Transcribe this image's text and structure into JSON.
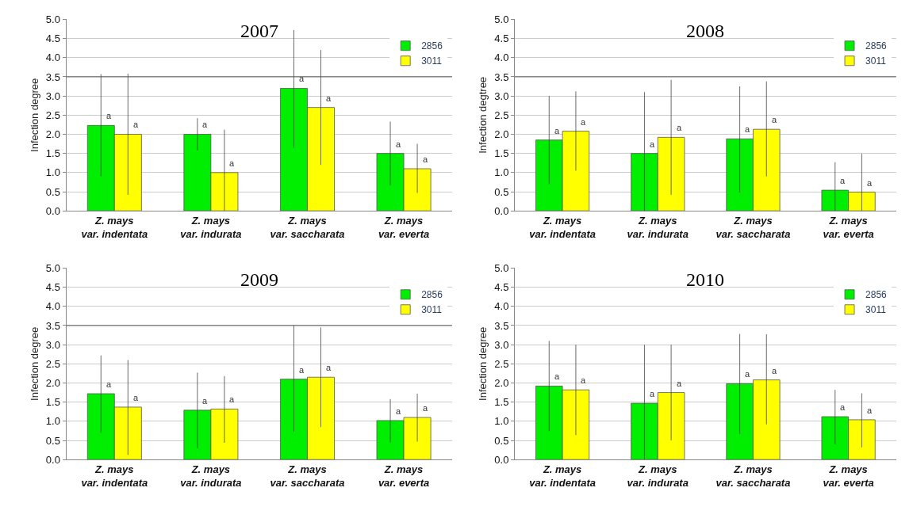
{
  "chart_data": [
    {
      "type": "bar",
      "title": "2007",
      "ylabel": "Infection degree",
      "categories": [
        "Z. mays\nvar. indentata",
        "Z. mays\nvar. indurata",
        "Z. mays\nvar. saccharata",
        "Z. mays\nvar. everta"
      ],
      "ylim": [
        0,
        5
      ],
      "yticks": [
        {
          "value": 0,
          "label": "0.0"
        },
        {
          "value": 0.5,
          "label": "0.5"
        },
        {
          "value": 1,
          "label": "1.0"
        },
        {
          "value": 1.5,
          "label": "1.5"
        },
        {
          "value": 2,
          "label": "2.0"
        },
        {
          "value": 2.5,
          "label": "2.5"
        },
        {
          "value": 3,
          "label": "3.0"
        },
        {
          "value": 3.5,
          "label": "3.5"
        },
        {
          "value": 4,
          "label": "4.0"
        },
        {
          "value": 4.5,
          "label": "4.5"
        },
        {
          "value": 5,
          "label": "5.0"
        }
      ],
      "grid": "y",
      "legend": "top right",
      "ref_lines": [
        {
          "axis": "y",
          "value": 3.5,
          "color": "#555555"
        }
      ],
      "series": [
        {
          "name": "2856",
          "color": "#00ee00",
          "values": [
            2.23,
            2.0,
            3.2,
            1.5
          ],
          "errors": [
            [
              0.9,
              3.57
            ],
            [
              1.58,
              2.42
            ],
            [
              1.65,
              4.72
            ],
            [
              0.67,
              2.33
            ]
          ],
          "value_labels": [
            "a",
            "a",
            "a",
            "a"
          ]
        },
        {
          "name": "3011",
          "color": "#ffff00",
          "values": [
            2.0,
            1.0,
            2.7,
            1.1
          ],
          "errors": [
            [
              0.42,
              3.58
            ],
            [
              0,
              2.12
            ],
            [
              1.2,
              4.2
            ],
            [
              0.47,
              1.75
            ]
          ],
          "value_labels": [
            "a",
            "a",
            "a",
            "a"
          ]
        }
      ]
    },
    {
      "type": "bar",
      "title": "2008",
      "ylabel": "Infection degtree",
      "categories": [
        "Z. mays\nvar. indentata",
        "Z. mays\nvar. indurata",
        "Z. mays\nvar. saccharata",
        "Z. mays\nvar. everta"
      ],
      "ylim": [
        0,
        5
      ],
      "yticks": [
        {
          "value": 0,
          "label": "0.0"
        },
        {
          "value": 0.5,
          "label": "0.5"
        },
        {
          "value": 1,
          "label": "1.0"
        },
        {
          "value": 1.5,
          "label": "1.5"
        },
        {
          "value": 2,
          "label": "2.0"
        },
        {
          "value": 2.5,
          "label": "2.5"
        },
        {
          "value": 3,
          "label": "3.0"
        },
        {
          "value": 3.5,
          "label": "3.5"
        },
        {
          "value": 4,
          "label": "4.0"
        },
        {
          "value": 4.5,
          "label": "4.5"
        },
        {
          "value": 5,
          "label": "5.0"
        }
      ],
      "grid": "y",
      "legend": "top right",
      "ref_lines": [
        {
          "axis": "y",
          "value": 3.5,
          "color": "#555555"
        }
      ],
      "series": [
        {
          "name": "2856",
          "color": "#00ee00",
          "values": [
            1.85,
            1.5,
            1.88,
            0.54
          ],
          "errors": [
            [
              0.7,
              3.0
            ],
            [
              0,
              3.1
            ],
            [
              0.48,
              3.25
            ],
            [
              0,
              1.27
            ]
          ],
          "value_labels": [
            "a",
            "a",
            "a",
            "a"
          ]
        },
        {
          "name": "3011",
          "color": "#ffff00",
          "values": [
            2.08,
            1.92,
            2.13,
            0.49
          ],
          "errors": [
            [
              1.05,
              3.12
            ],
            [
              0.42,
              3.42
            ],
            [
              0.9,
              3.38
            ],
            [
              0,
              1.49
            ]
          ],
          "value_labels": [
            "a",
            "a",
            "a",
            "a"
          ]
        }
      ]
    },
    {
      "type": "bar",
      "title": "2009",
      "ylabel": "Infection degree",
      "categories": [
        "Z. mays\nvar. indentata",
        "Z. mays\nvar. indurata",
        "Z. mays\nvar. saccharata",
        "Z. mays\nvar. everta"
      ],
      "ylim": [
        0,
        5
      ],
      "yticks": [
        {
          "value": 0,
          "label": "0.0"
        },
        {
          "value": 0.5,
          "label": "0.5"
        },
        {
          "value": 1,
          "label": "1.0"
        },
        {
          "value": 1.5,
          "label": "1.5"
        },
        {
          "value": 2,
          "label": "2.0"
        },
        {
          "value": 2.5,
          "label": "2.5"
        },
        {
          "value": 3,
          "label": "3.0"
        },
        {
          "value": 3.5,
          "label": "3.5"
        },
        {
          "value": 4,
          "label": "4.0"
        },
        {
          "value": 4.5,
          "label": "4.5"
        },
        {
          "value": 5,
          "label": "5.0"
        }
      ],
      "grid": "y",
      "legend": "top right",
      "ref_lines": [
        {
          "axis": "y",
          "value": 3.5,
          "color": "#555555"
        }
      ],
      "series": [
        {
          "name": "2856",
          "color": "#00ee00",
          "values": [
            1.72,
            1.29,
            2.1,
            1.02
          ],
          "errors": [
            [
              0.7,
              2.72
            ],
            [
              0.3,
              2.27
            ],
            [
              0.72,
              3.5
            ],
            [
              0.45,
              1.58
            ]
          ],
          "value_labels": [
            "a",
            "a",
            "a",
            "a"
          ]
        },
        {
          "name": "3011",
          "color": "#ffff00",
          "values": [
            1.37,
            1.32,
            2.15,
            1.1
          ],
          "errors": [
            [
              0.12,
              2.6
            ],
            [
              0.44,
              2.18
            ],
            [
              0.85,
              3.45
            ],
            [
              0.47,
              1.72
            ]
          ],
          "value_labels": [
            "a",
            "a",
            "a",
            "a"
          ]
        }
      ]
    },
    {
      "type": "bar",
      "title": "2010",
      "ylabel": "Infection degree",
      "categories": [
        "Z. mays\nvar. indentata",
        "Z. mays\nvar. indurata",
        "Z. mays\nvar. saccharata",
        "Z. mays\nvar. everta"
      ],
      "ylim": [
        0,
        5
      ],
      "yticks": [
        {
          "value": 0,
          "label": "0.0"
        },
        {
          "value": 0.5,
          "label": "0.5"
        },
        {
          "value": 1,
          "label": "1.0"
        },
        {
          "value": 1.5,
          "label": "1.5"
        },
        {
          "value": 2,
          "label": "2.0"
        },
        {
          "value": 2.5,
          "label": "2.5"
        },
        {
          "value": 3,
          "label": "3.0"
        },
        {
          "value": 3.5,
          "label": "3.5"
        },
        {
          "value": 4,
          "label": "4.0"
        },
        {
          "value": 4.5,
          "label": "4.5"
        },
        {
          "value": 5,
          "label": "5.0"
        }
      ],
      "grid": "y",
      "legend": "top right",
      "series": [
        {
          "name": "2856",
          "color": "#00ee00",
          "values": [
            1.92,
            1.47,
            1.98,
            1.12
          ],
          "errors": [
            [
              0.74,
              3.1
            ],
            [
              0,
              3.0
            ],
            [
              0.67,
              3.28
            ],
            [
              0.4,
              1.82
            ]
          ],
          "value_labels": [
            "a",
            "a",
            "a",
            "a"
          ]
        },
        {
          "name": "3011",
          "color": "#ffff00",
          "values": [
            1.82,
            1.75,
            2.08,
            1.04
          ],
          "errors": [
            [
              0.64,
              3.0
            ],
            [
              0.5,
              3.0
            ],
            [
              0.92,
              3.27
            ],
            [
              0.32,
              1.73
            ]
          ],
          "value_labels": [
            "a",
            "a",
            "a",
            "a"
          ]
        }
      ]
    }
  ]
}
